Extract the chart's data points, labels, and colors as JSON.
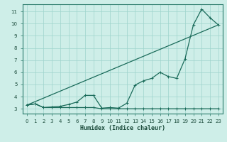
{
  "xlabel": "Humidex (Indice chaleur)",
  "xlim": [
    -0.5,
    23.5
  ],
  "ylim": [
    2.6,
    11.6
  ],
  "xticks": [
    0,
    1,
    2,
    3,
    4,
    5,
    6,
    7,
    8,
    9,
    10,
    11,
    12,
    13,
    14,
    15,
    16,
    17,
    18,
    19,
    20,
    21,
    22,
    23
  ],
  "yticks": [
    3,
    4,
    5,
    6,
    7,
    8,
    9,
    10,
    11
  ],
  "bg_color": "#ceeee8",
  "grid_color": "#9ed4cc",
  "line_color": "#1a6b5a",
  "line1_x": [
    0,
    1,
    2,
    3,
    4,
    5,
    6,
    7,
    8,
    9,
    10,
    11,
    12,
    13,
    14,
    15,
    16,
    17,
    18,
    19,
    20,
    21,
    22,
    23
  ],
  "line1_y": [
    3.3,
    3.4,
    3.1,
    3.15,
    3.2,
    3.35,
    3.55,
    4.1,
    4.1,
    3.05,
    3.1,
    3.05,
    3.45,
    4.95,
    5.3,
    5.5,
    6.0,
    5.65,
    5.5,
    7.1,
    9.9,
    11.2,
    10.5,
    9.9
  ],
  "line2_x": [
    0,
    1,
    2,
    3,
    4,
    5,
    6,
    7,
    8,
    9,
    10,
    11,
    12,
    13,
    14,
    15,
    16,
    17,
    18,
    19,
    20,
    21,
    22,
    23
  ],
  "line2_y": [
    3.3,
    3.4,
    3.1,
    3.1,
    3.1,
    3.1,
    3.1,
    3.1,
    3.1,
    3.0,
    3.0,
    3.0,
    3.0,
    3.0,
    3.0,
    3.0,
    3.0,
    3.0,
    3.0,
    3.0,
    3.0,
    3.0,
    3.0,
    3.0
  ],
  "line3_x": [
    0,
    23
  ],
  "line3_y": [
    3.3,
    9.9
  ],
  "xlabel_fontsize": 6.0,
  "tick_fontsize": 5.0
}
